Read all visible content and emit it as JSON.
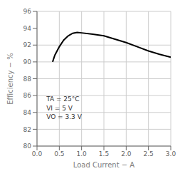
{
  "chart_data": {
    "type": "line",
    "title": "",
    "xlabel": "Load Current − A",
    "ylabel": "Efficiency − %",
    "x": [
      0.35,
      0.4,
      0.5,
      0.6,
      0.7,
      0.8,
      0.9,
      1.0,
      1.25,
      1.5,
      1.75,
      2.0,
      2.25,
      2.5,
      2.75,
      3.0
    ],
    "values": [
      90.0,
      90.8,
      91.8,
      92.6,
      93.1,
      93.4,
      93.5,
      93.45,
      93.3,
      93.1,
      92.7,
      92.3,
      91.8,
      91.3,
      90.9,
      90.55
    ],
    "color": "#000000",
    "xlim": [
      0,
      3
    ],
    "ylim": [
      80,
      96
    ],
    "xticks": [
      {
        "value": 0,
        "label": "0.0"
      },
      0.5,
      {
        "value": 1,
        "label": "1.0"
      },
      1.5,
      {
        "value": 2,
        "label": "2.0"
      },
      2.5,
      {
        "value": 3,
        "label": "3.0"
      }
    ],
    "yticks": [
      80,
      82,
      84,
      86,
      88,
      90,
      92,
      94,
      96
    ],
    "grid": true,
    "annotations": [
      "TA = 25°C",
      "VI = 5 V",
      "VO = 3.3 V"
    ]
  }
}
